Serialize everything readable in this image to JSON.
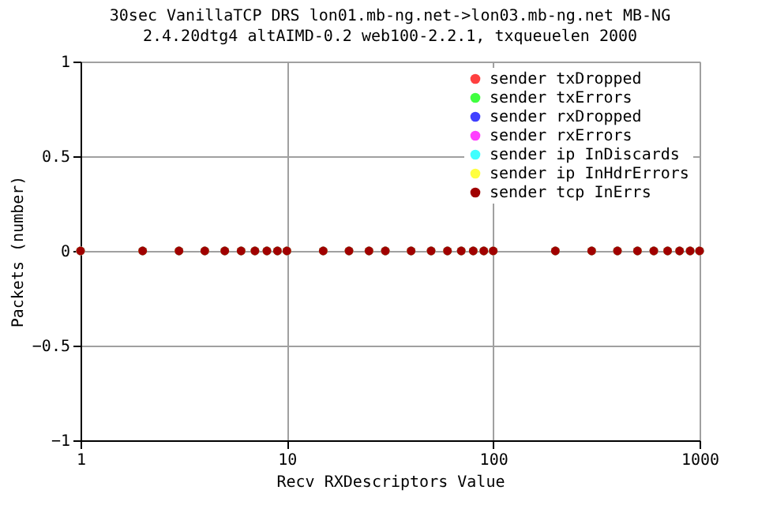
{
  "chart_data": {
    "type": "scatter",
    "title": "30sec VanillaTCP DRS lon01.mb-ng.net->lon03.mb-ng.net MB-NG",
    "subtitle": "2.4.20dtg4 altAIMD-0.2 web100-2.2.1, txqueuelen 2000",
    "xlabel": "Recv RXDescriptors Value",
    "ylabel": "Packets (number)",
    "x": [
      1,
      2,
      3,
      4,
      5,
      6,
      7,
      8,
      9,
      10,
      15,
      20,
      25,
      30,
      40,
      50,
      60,
      70,
      80,
      90,
      100,
      200,
      300,
      400,
      500,
      600,
      700,
      800,
      900,
      1000
    ],
    "series": [
      {
        "name": "sender txDropped",
        "color": "#ff4040",
        "values": [
          0,
          0,
          0,
          0,
          0,
          0,
          0,
          0,
          0,
          0,
          0,
          0,
          0,
          0,
          0,
          0,
          0,
          0,
          0,
          0,
          0,
          0,
          0,
          0,
          0,
          0,
          0,
          0,
          0,
          0
        ]
      },
      {
        "name": "sender txErrors",
        "color": "#40ff40",
        "values": [
          0,
          0,
          0,
          0,
          0,
          0,
          0,
          0,
          0,
          0,
          0,
          0,
          0,
          0,
          0,
          0,
          0,
          0,
          0,
          0,
          0,
          0,
          0,
          0,
          0,
          0,
          0,
          0,
          0,
          0
        ]
      },
      {
        "name": "sender rxDropped",
        "color": "#4040ff",
        "values": [
          0,
          0,
          0,
          0,
          0,
          0,
          0,
          0,
          0,
          0,
          0,
          0,
          0,
          0,
          0,
          0,
          0,
          0,
          0,
          0,
          0,
          0,
          0,
          0,
          0,
          0,
          0,
          0,
          0,
          0
        ]
      },
      {
        "name": "sender rxErrors",
        "color": "#ff40ff",
        "values": [
          0,
          0,
          0,
          0,
          0,
          0,
          0,
          0,
          0,
          0,
          0,
          0,
          0,
          0,
          0,
          0,
          0,
          0,
          0,
          0,
          0,
          0,
          0,
          0,
          0,
          0,
          0,
          0,
          0,
          0
        ]
      },
      {
        "name": "sender ip InDiscards",
        "color": "#40ffff",
        "values": [
          0,
          0,
          0,
          0,
          0,
          0,
          0,
          0,
          0,
          0,
          0,
          0,
          0,
          0,
          0,
          0,
          0,
          0,
          0,
          0,
          0,
          0,
          0,
          0,
          0,
          0,
          0,
          0,
          0,
          0
        ]
      },
      {
        "name": "sender ip InHdrErrors",
        "color": "#ffff40",
        "values": [
          0,
          0,
          0,
          0,
          0,
          0,
          0,
          0,
          0,
          0,
          0,
          0,
          0,
          0,
          0,
          0,
          0,
          0,
          0,
          0,
          0,
          0,
          0,
          0,
          0,
          0,
          0,
          0,
          0,
          0
        ]
      },
      {
        "name": "sender tcp InErrs",
        "color": "#a00000",
        "values": [
          0,
          0,
          0,
          0,
          0,
          0,
          0,
          0,
          0,
          0,
          0,
          0,
          0,
          0,
          0,
          0,
          0,
          0,
          0,
          0,
          0,
          0,
          0,
          0,
          0,
          0,
          0,
          0,
          0,
          0
        ]
      }
    ],
    "log": "x",
    "xlim": [
      1,
      1000
    ],
    "xticks": [
      1,
      10,
      100,
      1000
    ],
    "ylim": [
      -1,
      1
    ],
    "yticks": [
      -1,
      -0.5,
      0,
      0.5,
      1
    ],
    "grid": true,
    "legend": "top right",
    "marker": "circle"
  }
}
